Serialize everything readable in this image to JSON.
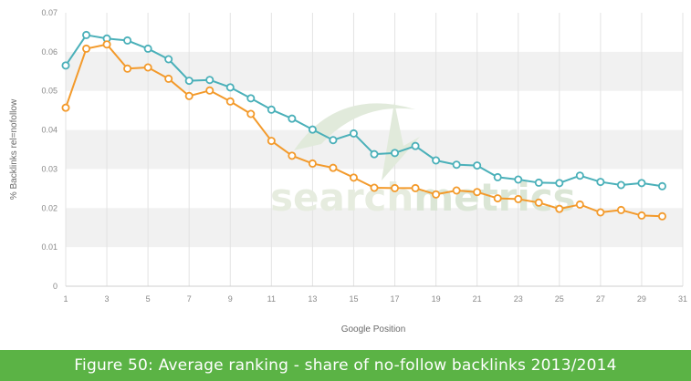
{
  "caption": "Figure 50: Average ranking - share of no-follow backlinks 2013/2014",
  "watermark": {
    "part1": "search",
    "part2": "metrics"
  },
  "colors": {
    "series_2013": "#f39a2b",
    "series_2014": "#4ab0b9",
    "band": "#f1f1f1",
    "caption_bg": "#5bb345",
    "watermark": "#e6ecdf",
    "watermark_bold": "#dbe6d6"
  },
  "chart_data": {
    "type": "line",
    "title": "",
    "xlabel": "Google Position",
    "ylabel": "% Backlinks rel=nofollow",
    "xlim": [
      1,
      31
    ],
    "ylim": [
      0,
      0.07
    ],
    "x_ticks": [
      "1",
      "3",
      "5",
      "7",
      "9",
      "11",
      "13",
      "15",
      "17",
      "19",
      "21",
      "23",
      "25",
      "27",
      "29",
      "31"
    ],
    "y_ticks": [
      "0",
      "0.01",
      "0.02",
      "0.03",
      "0.04",
      "0.05",
      "0.06",
      "0.07"
    ],
    "grid": "alternating horizontal bands, vertical lines every 2 positions",
    "x": [
      1,
      2,
      3,
      4,
      5,
      6,
      7,
      8,
      9,
      10,
      11,
      12,
      13,
      14,
      15,
      16,
      17,
      18,
      19,
      20,
      21,
      22,
      23,
      24,
      25,
      26,
      27,
      28,
      29,
      30
    ],
    "series": [
      {
        "color": "#4ab0b9",
        "values": [
          0.0565,
          0.0643,
          0.0634,
          0.0629,
          0.0608,
          0.0581,
          0.0526,
          0.0528,
          0.0509,
          0.0481,
          0.0452,
          0.0429,
          0.0401,
          0.0374,
          0.0391,
          0.0338,
          0.0341,
          0.0359,
          0.0322,
          0.0311,
          0.0309,
          0.0279,
          0.0273,
          0.0265,
          0.0264,
          0.0283,
          0.0267,
          0.0259,
          0.0264,
          0.0256
        ]
      },
      {
        "color": "#f39a2b",
        "values": [
          0.0457,
          0.0608,
          0.0619,
          0.0557,
          0.056,
          0.0531,
          0.0487,
          0.0501,
          0.0473,
          0.0441,
          0.0372,
          0.0334,
          0.0314,
          0.0303,
          0.0278,
          0.0252,
          0.0251,
          0.0251,
          0.0235,
          0.0245,
          0.0241,
          0.0225,
          0.0223,
          0.0214,
          0.0198,
          0.0209,
          0.0189,
          0.0195,
          0.0181,
          0.0179
        ]
      }
    ]
  }
}
